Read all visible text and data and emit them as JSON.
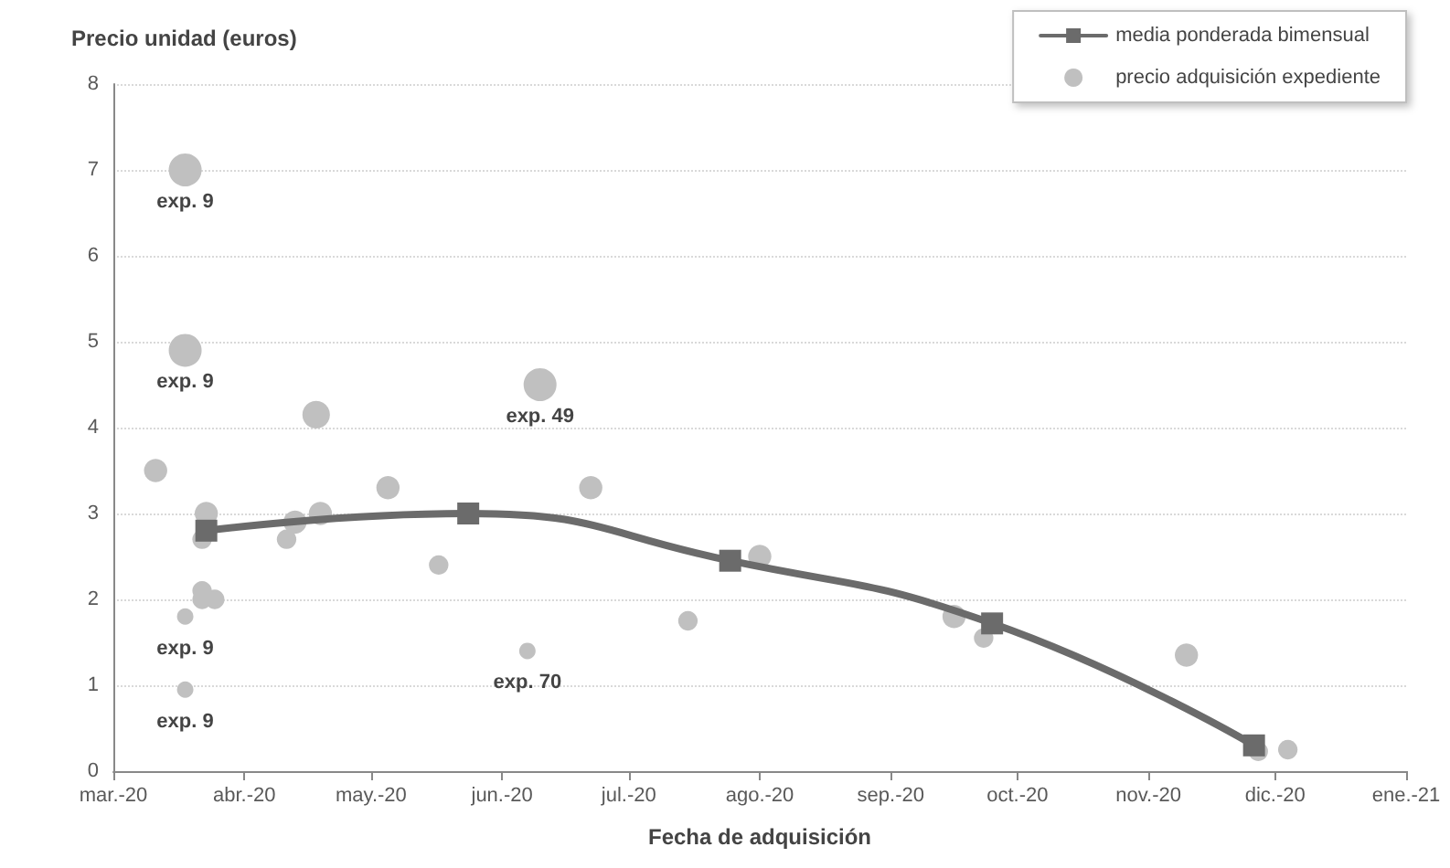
{
  "chart_data": {
    "type": "bubble",
    "ylabel": "Precio unidad (euros)",
    "xlabel": "Fecha de adquisición",
    "xlim": [
      "2020-03-01",
      "2021-01-01"
    ],
    "xticks": [
      {
        "value": "2020-03-01",
        "label": "mar.-20"
      },
      {
        "value": "2020-04-01",
        "label": "abr.-20"
      },
      {
        "value": "2020-05-01",
        "label": "may.-20"
      },
      {
        "value": "2020-06-01",
        "label": "jun.-20"
      },
      {
        "value": "2020-07-01",
        "label": "jul.-20"
      },
      {
        "value": "2020-08-01",
        "label": "ago.-20"
      },
      {
        "value": "2020-09-01",
        "label": "sep.-20"
      },
      {
        "value": "2020-10-01",
        "label": "oct.-20"
      },
      {
        "value": "2020-11-01",
        "label": "nov.-20"
      },
      {
        "value": "2020-12-01",
        "label": "dic.-20"
      },
      {
        "value": "2021-01-01",
        "label": "ene.-21"
      }
    ],
    "ylim": [
      0,
      8
    ],
    "yticks": [
      0,
      1,
      2,
      3,
      4,
      5,
      6,
      7,
      8
    ],
    "grid": "y",
    "legend": "top right",
    "series": [
      {
        "name": "media ponderada bimensual",
        "type": "line",
        "color": "#6b6b6b",
        "marker": "square",
        "line_style": "solid",
        "x": [
          "2020-03-23",
          "2020-05-24",
          "2020-07-25",
          "2020-09-25",
          "2020-11-26"
        ],
        "values": [
          2.8,
          3.0,
          2.45,
          1.72,
          0.3
        ]
      },
      {
        "name": "precio adquisición expediente",
        "color": "#c0c0c0",
        "marker": "circle",
        "x": [
          "2020-03-11",
          "2020-03-18",
          "2020-03-18",
          "2020-03-18",
          "2020-03-18",
          "2020-03-22",
          "2020-03-22",
          "2020-03-22",
          "2020-03-23",
          "2020-03-25",
          "2020-04-11",
          "2020-04-13",
          "2020-04-18",
          "2020-04-19",
          "2020-05-05",
          "2020-05-17",
          "2020-06-07",
          "2020-06-10",
          "2020-06-22",
          "2020-07-15",
          "2020-08-01",
          "2020-09-16",
          "2020-09-23",
          "2020-11-10",
          "2020-11-27",
          "2020-12-04"
        ],
        "values": [
          3.5,
          7.0,
          4.9,
          1.8,
          0.95,
          2.0,
          2.7,
          2.1,
          3.0,
          2.0,
          2.7,
          2.9,
          4.15,
          3.0,
          3.3,
          2.4,
          1.4,
          4.5,
          3.3,
          1.75,
          2.5,
          1.8,
          1.55,
          1.35,
          0.23,
          0.25
        ],
        "sizes": [
          0.5,
          1,
          1,
          0.25,
          0.25,
          0.35,
          0.35,
          0.35,
          0.5,
          0.35,
          0.35,
          0.5,
          0.7,
          0.5,
          0.5,
          0.35,
          0.25,
          1,
          0.5,
          0.35,
          0.5,
          0.5,
          0.35,
          0.5,
          0.35,
          0.35
        ]
      }
    ],
    "annotations": [
      {
        "text": "exp. 9",
        "x": "2020-03-18",
        "y": 7.0
      },
      {
        "text": "exp. 9",
        "x": "2020-03-18",
        "y": 4.9
      },
      {
        "text": "exp. 9",
        "x": "2020-03-18",
        "y": 1.8
      },
      {
        "text": "exp. 9",
        "x": "2020-03-18",
        "y": 0.95
      },
      {
        "text": "exp. 49",
        "x": "2020-06-10",
        "y": 4.5
      },
      {
        "text": "exp. 70",
        "x": "2020-06-07",
        "y": 1.4
      }
    ]
  }
}
